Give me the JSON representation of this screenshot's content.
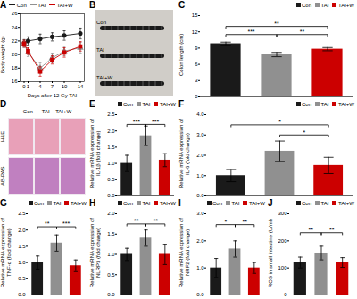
{
  "chart_data": [
    {
      "type": "line",
      "title": "A",
      "x": [
        0,
        1,
        4,
        7,
        10,
        14
      ],
      "xlabel": "Days after 12 Gy TAI",
      "ylabel": "Body weight (g)",
      "xlim": [
        -1,
        15
      ],
      "xticks": [
        0,
        1,
        4,
        7,
        10,
        14
      ],
      "ylim": [
        16,
        26
      ],
      "yticks": [
        16,
        18,
        20,
        22,
        24,
        26
      ],
      "legend": "upper left",
      "series": [
        {
          "name": "Con",
          "color": "#1a1a1a",
          "marker": "circle",
          "values": [
            21.7,
            22.0,
            22.3,
            22.6,
            22.8,
            23.1
          ],
          "errors": [
            0.5,
            0.6,
            0.7,
            0.6,
            0.7,
            0.8
          ]
        },
        {
          "name": "TAI",
          "color": "#909090",
          "marker": "triangle",
          "values": [
            21.5,
            20.3,
            18.0,
            19.5,
            20.5,
            21.0
          ],
          "errors": [
            0.5,
            0.6,
            0.8,
            0.7,
            0.7,
            0.8
          ]
        },
        {
          "name": "TAI+W",
          "color": "#cc0000",
          "marker": "square",
          "values": [
            21.6,
            20.5,
            17.5,
            19.2,
            20.3,
            21.2
          ],
          "errors": [
            0.5,
            0.5,
            0.7,
            0.6,
            0.7,
            0.7
          ]
        }
      ]
    },
    {
      "type": "image",
      "title": "B",
      "annotations": [
        "Con",
        "TAI",
        "TAI+W"
      ]
    },
    {
      "type": "bar",
      "title": "C",
      "categories": [
        "Con",
        "TAI",
        "TAI+W"
      ],
      "values": [
        9.8,
        7.8,
        8.8
      ],
      "errors": [
        0.3,
        0.4,
        0.3
      ],
      "colors": [
        "#1a1a1a",
        "#909090",
        "#cc0000"
      ],
      "ylabel": "Colon length (cm)",
      "ylim": [
        0,
        15
      ],
      "yticks": [
        0,
        3,
        6,
        9,
        12,
        15
      ],
      "significance": [
        {
          "from": "Con",
          "to": "TAI",
          "y": 11.5,
          "label": "***"
        },
        {
          "from": "TAI",
          "to": "TAI+W",
          "y": 11.5,
          "label": "**"
        },
        {
          "from": "Con",
          "to": "TAI+W",
          "y": 13.0,
          "label": "**"
        }
      ],
      "legend": "upper right",
      "tick_labels": "y"
    },
    {
      "type": "image",
      "title": "D",
      "annotations": [
        "Con      TAI    TAI+W",
        "H&E",
        "AB-PAS"
      ]
    },
    {
      "type": "bar",
      "title": "E",
      "categories": [
        "Con",
        "TAI",
        "TAI+W"
      ],
      "values": [
        1.0,
        1.85,
        1.1
      ],
      "errors": [
        0.25,
        0.3,
        0.2
      ],
      "colors": [
        "#1a1a1a",
        "#909090",
        "#cc0000"
      ],
      "ylabel": "Relative mRNA expression of\nIL-1β (fold change)",
      "ylim": [
        0,
        2.5
      ],
      "yticks": [
        {
          "value": 0,
          "label": "0.0"
        },
        0.5,
        {
          "value": 1.0,
          "label": "1.0"
        },
        1.5,
        {
          "value": 2.0,
          "label": "2.0"
        },
        2.5
      ],
      "significance": [
        {
          "from": "Con",
          "to": "TAI",
          "y": 2.2,
          "label": "***"
        },
        {
          "from": "TAI",
          "to": "TAI+W",
          "y": 2.2,
          "label": "***"
        }
      ],
      "legend": "upper right",
      "tick_labels": "y"
    },
    {
      "type": "bar",
      "title": "F",
      "categories": [
        "Con",
        "TAI",
        "TAI+W"
      ],
      "values": [
        1.0,
        2.2,
        1.5
      ],
      "errors": [
        0.3,
        0.5,
        0.4
      ],
      "colors": [
        "#1a1a1a",
        "#909090",
        "#cc0000"
      ],
      "ylabel": "Relative mRNA expression of\nIL-6 (fold change)",
      "ylim": [
        0,
        4.0
      ],
      "yticks": [
        {
          "value": 0,
          "label": "0.0"
        },
        {
          "value": 1.0,
          "label": "1.0"
        },
        {
          "value": 2.0,
          "label": "2.0"
        },
        {
          "value": 3.0,
          "label": "3.0"
        },
        {
          "value": 4.0,
          "label": "4.0"
        }
      ],
      "significance": [
        {
          "from": "Con",
          "to": "TAI+W",
          "y": 3.5,
          "label": "*"
        },
        {
          "from": "TAI",
          "to": "TAI+W",
          "y": 3.0,
          "label": "*"
        }
      ],
      "legend": "upper right",
      "tick_labels": "y"
    },
    {
      "type": "bar",
      "title": "G",
      "categories": [
        "Con",
        "TAI",
        "TAI+W"
      ],
      "values": [
        1.0,
        1.6,
        0.9
      ],
      "errors": [
        0.2,
        0.25,
        0.18
      ],
      "colors": [
        "#1a1a1a",
        "#909090",
        "#cc0000"
      ],
      "ylabel": "Relative mRNA expression of\nTNF-α (fold change)",
      "ylim": [
        0,
        2.5
      ],
      "yticks": [
        {
          "value": 0,
          "label": "0.0"
        },
        0.5,
        {
          "value": 1.0,
          "label": "1.0"
        },
        1.5,
        {
          "value": 2.0,
          "label": "2.0"
        },
        2.5
      ],
      "significance": [
        {
          "from": "Con",
          "to": "TAI",
          "y": 2.1,
          "label": "**"
        },
        {
          "from": "TAI",
          "to": "TAI+W",
          "y": 2.1,
          "label": "***"
        }
      ],
      "legend": "upper right",
      "tick_labels": "y"
    },
    {
      "type": "bar",
      "title": "H",
      "categories": [
        "Con",
        "TAI",
        "TAI+W"
      ],
      "values": [
        1.0,
        1.4,
        1.0
      ],
      "errors": [
        0.15,
        0.2,
        0.25
      ],
      "colors": [
        "#1a1a1a",
        "#909090",
        "#cc0000"
      ],
      "ylabel": "Relative mRNA expression of\nNLRP3 (fold change)",
      "ylim": [
        0,
        2.0
      ],
      "yticks": [
        {
          "value": 0,
          "label": "0.0"
        },
        0.5,
        {
          "value": 1.0,
          "label": "1.0"
        },
        1.5,
        {
          "value": 2.0,
          "label": "2.0"
        }
      ],
      "significance": [
        {
          "from": "Con",
          "to": "TAI",
          "y": 1.75,
          "label": "**"
        },
        {
          "from": "TAI",
          "to": "TAI+W",
          "y": 1.75,
          "label": "**"
        }
      ],
      "legend": "upper right",
      "tick_labels": "y"
    },
    {
      "type": "bar",
      "title": "I",
      "categories": [
        "Con",
        "TAI",
        "TAI+W"
      ],
      "values": [
        1.0,
        1.7,
        1.0
      ],
      "errors": [
        0.35,
        0.3,
        0.2
      ],
      "colors": [
        "#1a1a1a",
        "#909090",
        "#cc0000"
      ],
      "ylabel": "Relative mRNA expression of\nNRF2 (fold change)",
      "ylim": [
        0,
        3.0
      ],
      "yticks": [
        {
          "value": 0,
          "label": "0.0"
        },
        {
          "value": 1.0,
          "label": "1.0"
        },
        {
          "value": 2.0,
          "label": "2.0"
        },
        {
          "value": 3.0,
          "label": "3.0"
        }
      ],
      "significance": [
        {
          "from": "Con",
          "to": "TAI",
          "y": 2.6,
          "label": "*"
        },
        {
          "from": "TAI",
          "to": "TAI+W",
          "y": 2.6,
          "label": "**"
        }
      ],
      "legend": "upper right",
      "tick_labels": "y"
    },
    {
      "type": "bar",
      "title": "J",
      "categories": [
        "Con",
        "TAI",
        "TAI+W"
      ],
      "values": [
        120,
        155,
        120
      ],
      "errors": [
        20,
        25,
        18
      ],
      "colors": [
        "#1a1a1a",
        "#909090",
        "#cc0000"
      ],
      "ylabel": "ROS in small intestine (U/ml)",
      "ylim": [
        0,
        300
      ],
      "yticks": [
        0,
        100,
        200,
        300
      ],
      "significance": [
        {
          "from": "Con",
          "to": "TAI",
          "y": 230,
          "label": "**"
        },
        {
          "from": "TAI",
          "to": "TAI+W",
          "y": 230,
          "label": "**"
        }
      ],
      "legend": "upper right",
      "tick_labels": "y"
    }
  ]
}
